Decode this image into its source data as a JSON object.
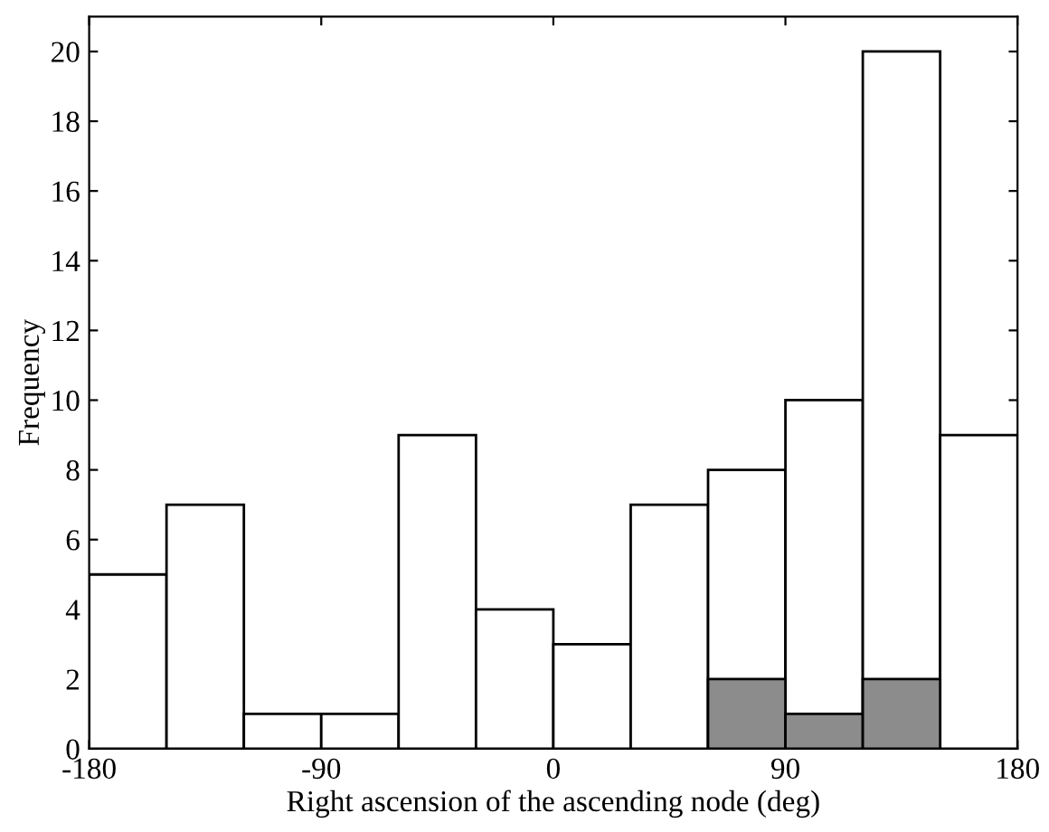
{
  "chart_data": {
    "type": "histogram",
    "xlabel": "Right ascension of the ascending node (deg)",
    "ylabel": "Frequency",
    "bins": [
      -180,
      -150,
      -120,
      -90,
      -60,
      -30,
      0,
      30,
      60,
      90,
      120,
      150,
      180
    ],
    "series": [
      {
        "color": "#ffffff",
        "values": [
          5,
          7,
          1,
          1,
          9,
          4,
          3,
          7,
          8,
          10,
          20,
          9
        ]
      },
      {
        "color": "#8c8c8c",
        "values": [
          0,
          0,
          0,
          0,
          0,
          0,
          0,
          0,
          2,
          1,
          2,
          0
        ]
      }
    ],
    "xlim": [
      -180,
      180
    ],
    "xticks": [
      -180,
      -90,
      0,
      90,
      180
    ],
    "ylim": [
      0,
      21
    ],
    "yticks": [
      0,
      2,
      4,
      6,
      8,
      10,
      12,
      14,
      16,
      18,
      20
    ],
    "grid": false,
    "legend": false
  }
}
